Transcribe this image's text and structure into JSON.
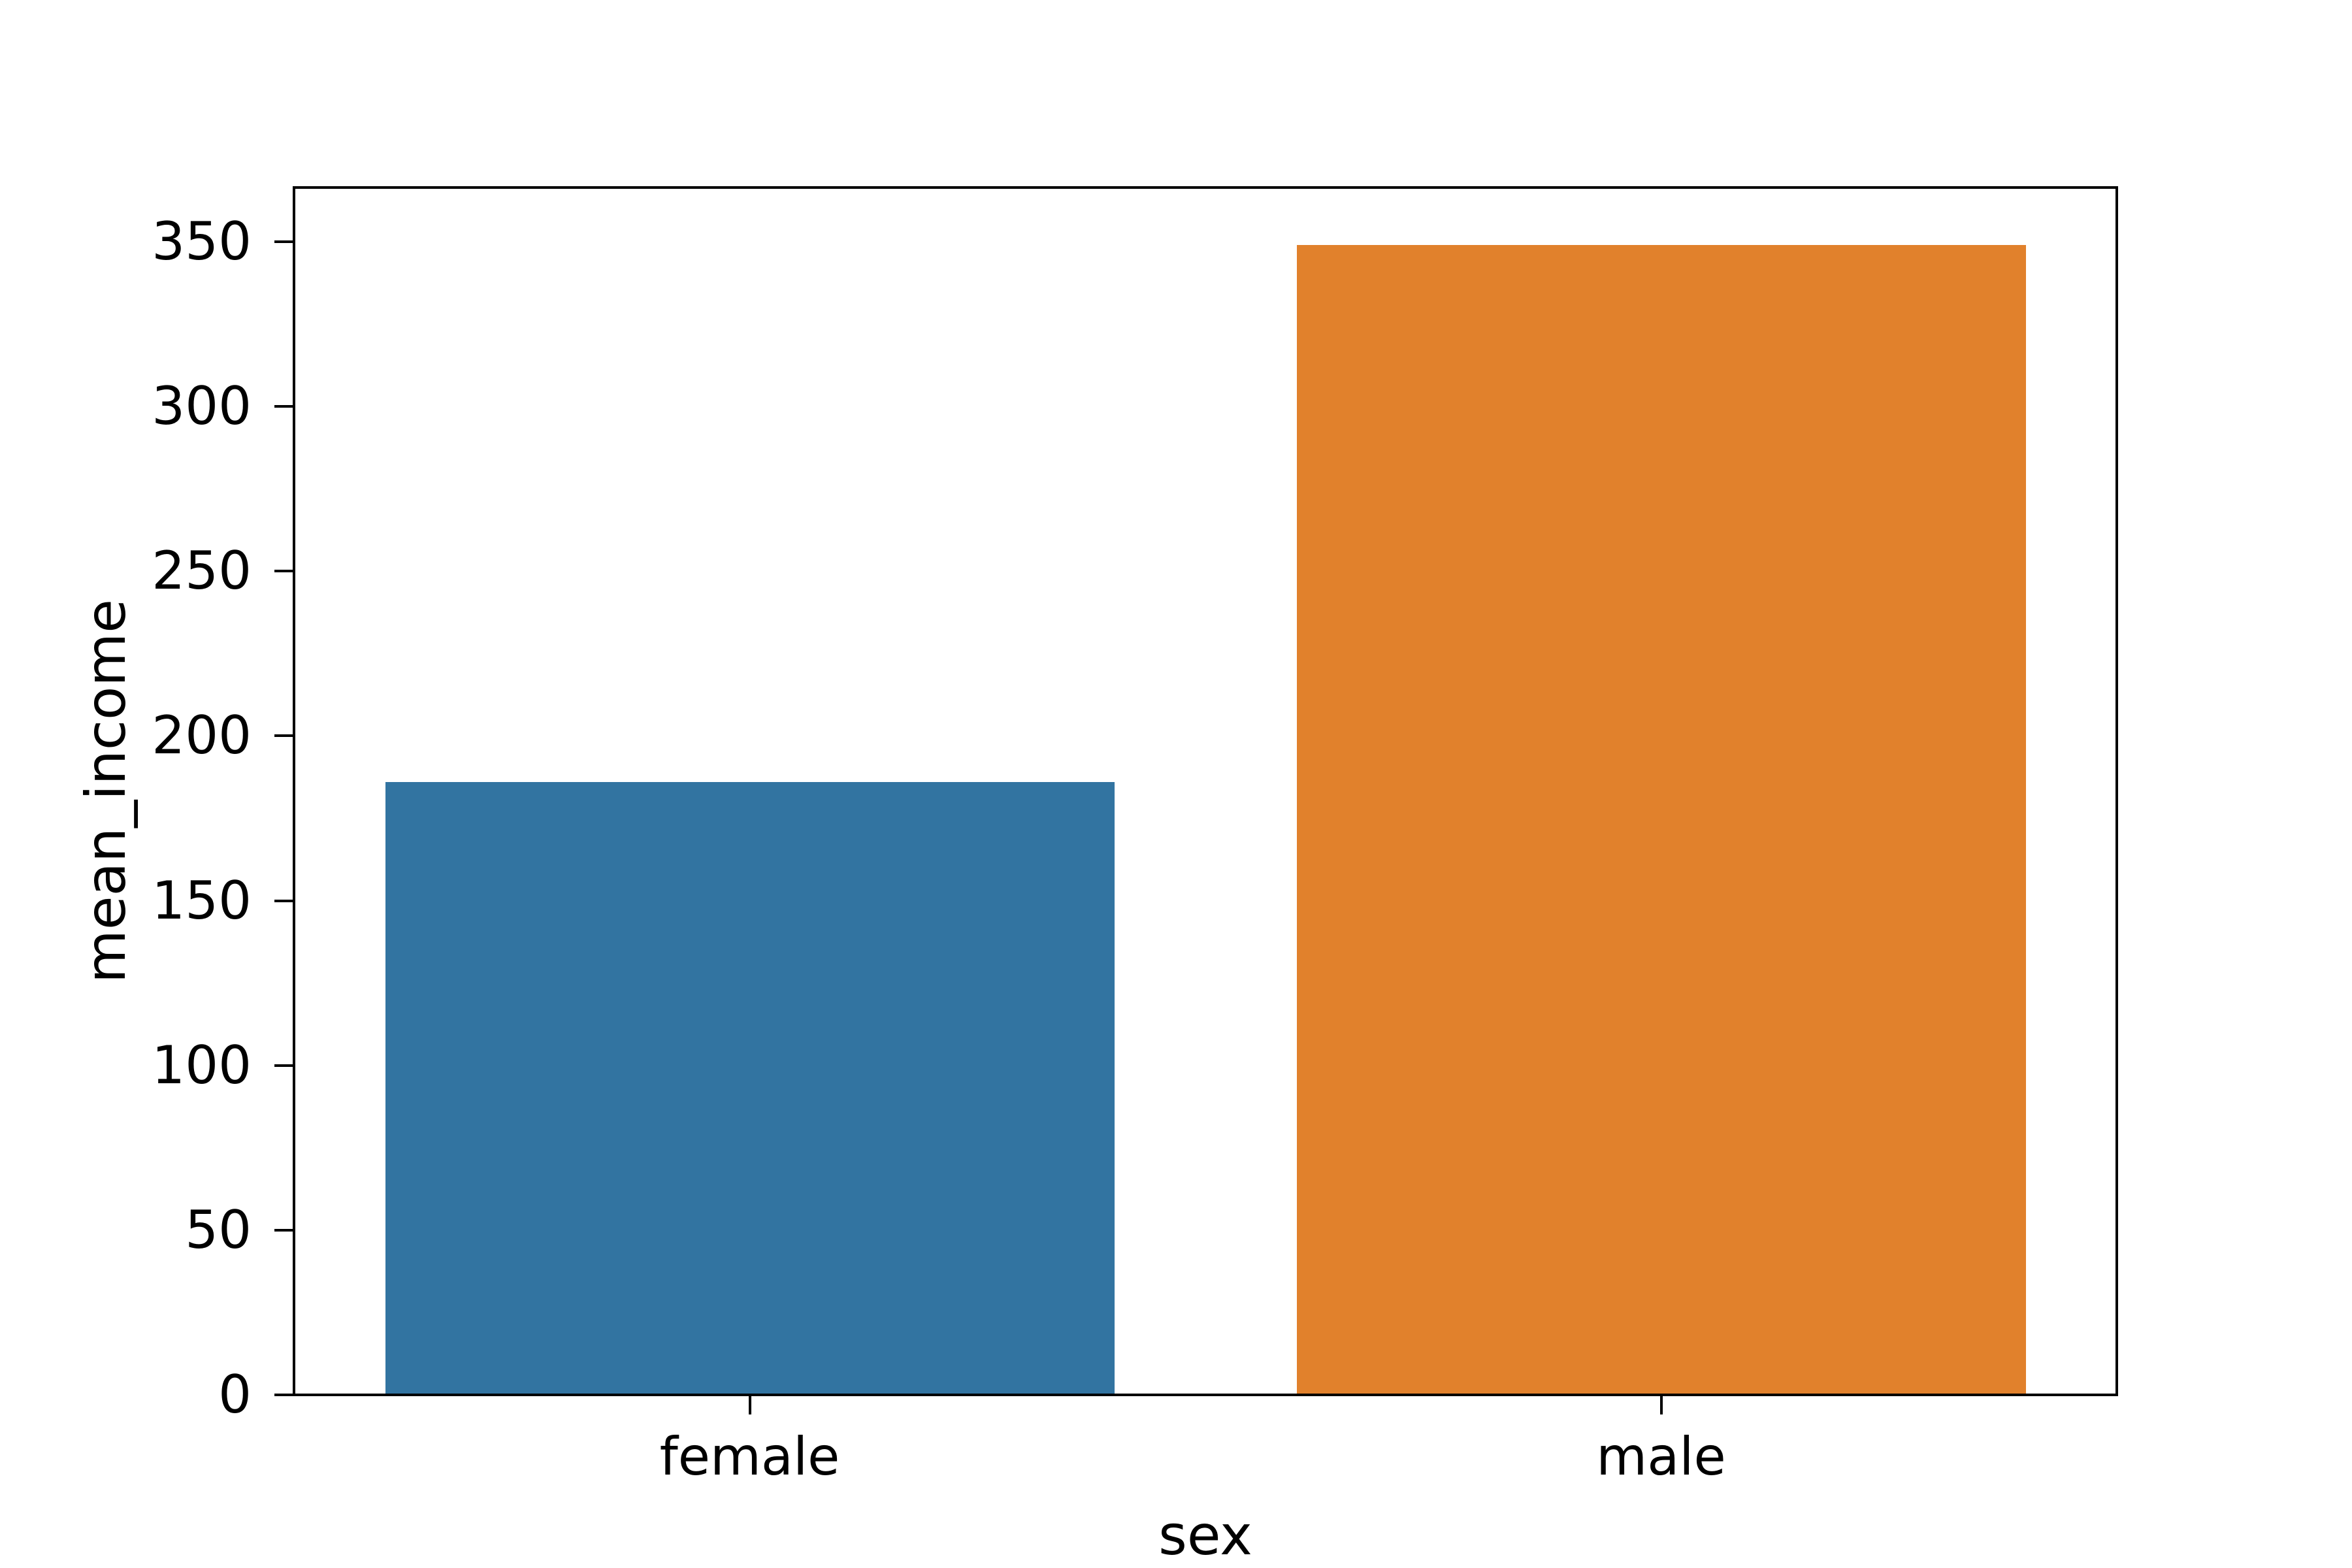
{
  "figure": {
    "background": "#ffffff",
    "text_color": "#000000",
    "axis_color": "#000000"
  },
  "chart_data": {
    "type": "bar",
    "title": "",
    "xlabel": "sex",
    "ylabel": "mean_income",
    "categories": [
      "female",
      "male"
    ],
    "values": [
      186,
      349
    ],
    "bar_colors": [
      "#3274a1",
      "#e1812c"
    ],
    "bar_width_fraction": 0.8,
    "ylim": [
      0,
      366.45
    ],
    "yticks": [
      0,
      50,
      100,
      150,
      200,
      250,
      300,
      350
    ],
    "ytick_labels": [
      "0",
      "50",
      "100",
      "150",
      "200",
      "250",
      "300",
      "350"
    ],
    "xtick_labels": [
      "female",
      "male"
    ],
    "grid": false,
    "legend": null
  }
}
